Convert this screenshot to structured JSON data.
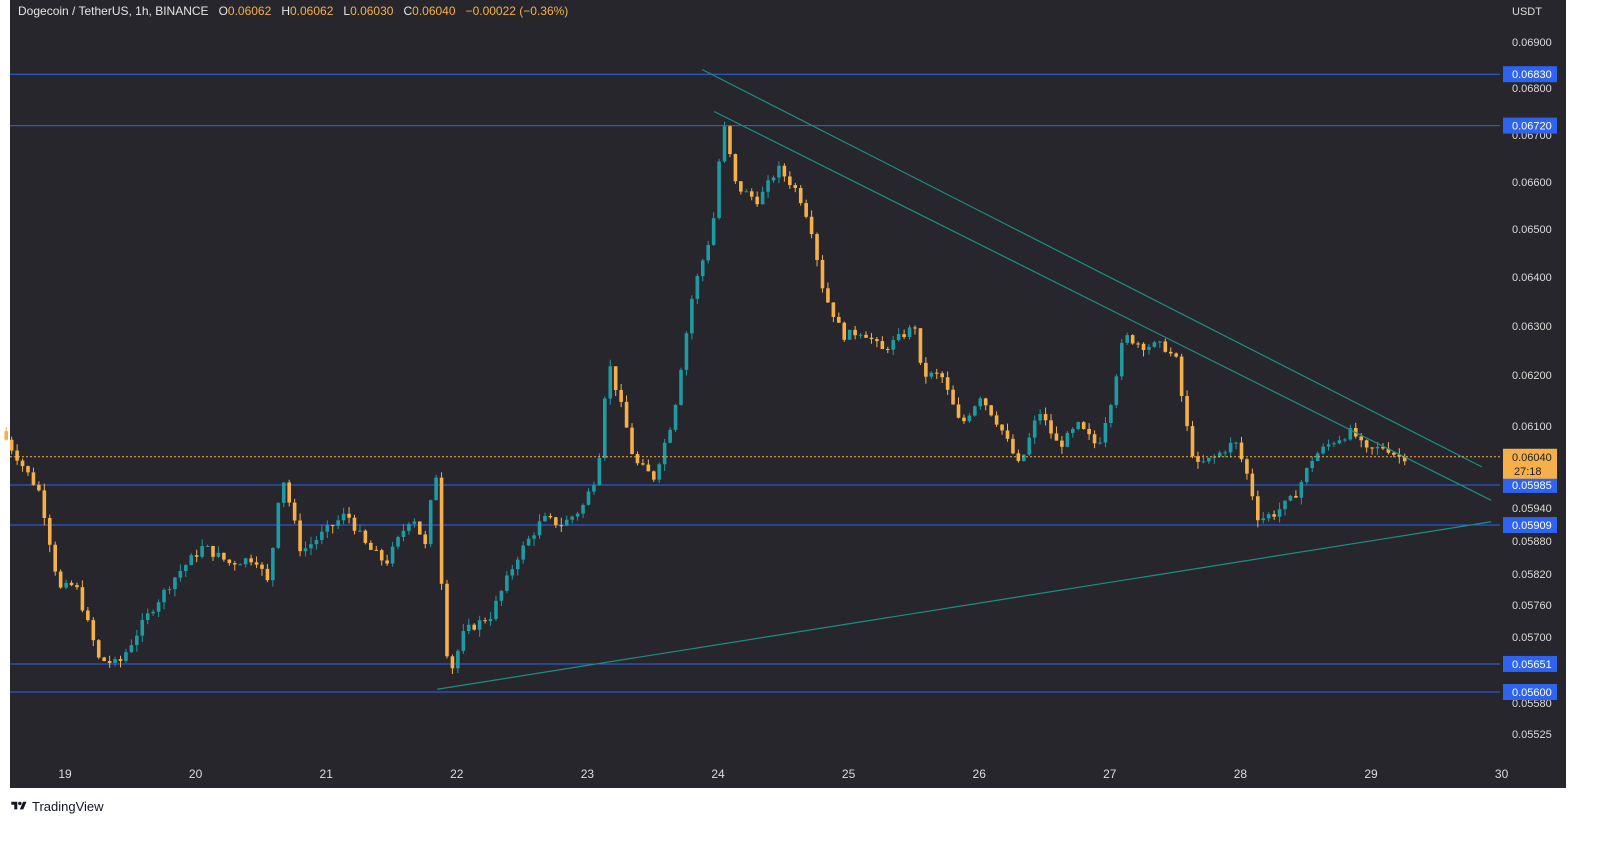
{
  "legend": {
    "title": "Dogecoin / TetherUS, 1h, BINANCE",
    "open_label": "O",
    "open": "0.06062",
    "high_label": "H",
    "high": "0.06062",
    "low_label": "L",
    "low": "0.06030",
    "close_label": "C",
    "close": "0.06040",
    "change": "−0.00022 (−0.36%)"
  },
  "footer": {
    "brand": "TradingView"
  },
  "colors": {
    "background": "#26262c",
    "up": "#1f9aa0",
    "down": "#f5b04a",
    "level_line": "#2d63ef",
    "trend_line": "#1c8f83",
    "axis_text": "#dcdcdc"
  },
  "chart_data": {
    "type": "candlestick",
    "symbol": "Dogecoin / TetherUS",
    "interval": "1h",
    "exchange": "BINANCE",
    "currency": "USDT",
    "x_ticks": [
      "19",
      "20",
      "21",
      "22",
      "23",
      "24",
      "25",
      "26",
      "27",
      "28",
      "29",
      "30"
    ],
    "x_range": [
      18.55,
      29.95
    ],
    "y_ticks": [
      "0.06900",
      "0.06800",
      "0.06700",
      "0.06600",
      "0.06500",
      "0.06400",
      "0.06300",
      "0.06200",
      "0.06100",
      "0.05940",
      "0.05880",
      "0.05820",
      "0.05760",
      "0.05700",
      "0.05580",
      "0.05525"
    ],
    "horizontal_levels": [
      "0.06830",
      "0.06720",
      "0.05985",
      "0.05909",
      "0.05651",
      "0.05600"
    ],
    "current_price": "0.06040",
    "countdown": "27:18",
    "trendlines": [
      {
        "from": {
          "day": 23.88,
          "price": 0.0684
        },
        "to": {
          "day": 29.85,
          "price": 0.0602
        }
      },
      {
        "from": {
          "day": 23.97,
          "price": 0.0675
        },
        "to": {
          "day": 29.92,
          "price": 0.05955
        }
      },
      {
        "from": {
          "day": 21.85,
          "price": 0.05605
        },
        "to": {
          "day": 29.92,
          "price": 0.05915
        }
      }
    ],
    "keypoints": [
      [
        18.55,
        0.0609
      ],
      [
        18.85,
        0.0597
      ],
      [
        19.0,
        0.0579
      ],
      [
        19.12,
        0.058
      ],
      [
        19.3,
        0.0566
      ],
      [
        19.45,
        0.0565
      ],
      [
        19.7,
        0.0575
      ],
      [
        19.9,
        0.0582
      ],
      [
        20.1,
        0.0587
      ],
      [
        20.3,
        0.0584
      ],
      [
        20.5,
        0.0585
      ],
      [
        20.6,
        0.058
      ],
      [
        20.7,
        0.0601
      ],
      [
        20.85,
        0.0586
      ],
      [
        21.0,
        0.0589
      ],
      [
        21.2,
        0.0593
      ],
      [
        21.35,
        0.0587
      ],
      [
        21.5,
        0.0584
      ],
      [
        21.7,
        0.0593
      ],
      [
        21.8,
        0.0587
      ],
      [
        21.88,
        0.0602
      ],
      [
        21.95,
        0.0569
      ],
      [
        22.0,
        0.0564
      ],
      [
        22.1,
        0.0571
      ],
      [
        22.3,
        0.0574
      ],
      [
        22.5,
        0.0585
      ],
      [
        22.7,
        0.0592
      ],
      [
        22.85,
        0.0591
      ],
      [
        23.0,
        0.0594
      ],
      [
        23.12,
        0.0601
      ],
      [
        23.2,
        0.0623
      ],
      [
        23.32,
        0.0612
      ],
      [
        23.4,
        0.0603
      ],
      [
        23.55,
        0.06
      ],
      [
        23.7,
        0.0612
      ],
      [
        23.85,
        0.0637
      ],
      [
        24.0,
        0.065
      ],
      [
        24.08,
        0.0673
      ],
      [
        24.18,
        0.0659
      ],
      [
        24.35,
        0.0656
      ],
      [
        24.5,
        0.0663
      ],
      [
        24.65,
        0.0658
      ],
      [
        24.75,
        0.0651
      ],
      [
        24.85,
        0.0637
      ],
      [
        25.0,
        0.0628
      ],
      [
        25.15,
        0.0629
      ],
      [
        25.3,
        0.0625
      ],
      [
        25.45,
        0.0628
      ],
      [
        25.55,
        0.063
      ],
      [
        25.6,
        0.062
      ],
      [
        25.75,
        0.062
      ],
      [
        25.9,
        0.061
      ],
      [
        26.05,
        0.0616
      ],
      [
        26.2,
        0.061
      ],
      [
        26.35,
        0.0602
      ],
      [
        26.5,
        0.0613
      ],
      [
        26.65,
        0.0606
      ],
      [
        26.8,
        0.061
      ],
      [
        26.95,
        0.0606
      ],
      [
        27.05,
        0.0615
      ],
      [
        27.15,
        0.0628
      ],
      [
        27.3,
        0.0626
      ],
      [
        27.45,
        0.0626
      ],
      [
        27.55,
        0.0623
      ],
      [
        27.62,
        0.0611
      ],
      [
        27.7,
        0.0602
      ],
      [
        27.85,
        0.0604
      ],
      [
        28.0,
        0.0607
      ],
      [
        28.1,
        0.06
      ],
      [
        28.18,
        0.0592
      ],
      [
        28.3,
        0.0593
      ],
      [
        28.45,
        0.0596
      ],
      [
        28.6,
        0.0604
      ],
      [
        28.75,
        0.0607
      ],
      [
        28.9,
        0.0609
      ],
      [
        29.0,
        0.0605
      ],
      [
        29.15,
        0.0606
      ],
      [
        29.25,
        0.0604
      ]
    ]
  }
}
